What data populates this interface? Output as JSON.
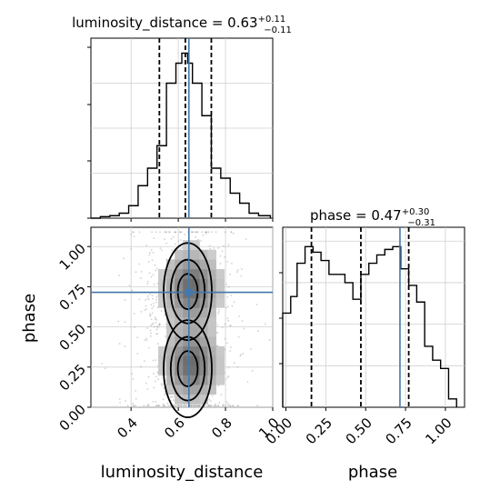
{
  "chart_data": [
    {
      "type": "histogram",
      "panel": "luminosity_distance marginal",
      "title_param": "luminosity_distance",
      "title_value": "0.63",
      "title_plus": "+0.11",
      "title_minus": "−0.11",
      "xlim": [
        0.23,
        1.0
      ],
      "ylim": [
        0,
        0.36
      ],
      "bins": [
        {
          "x0": 0.23,
          "x1": 0.27,
          "v": 0.0
        },
        {
          "x0": 0.27,
          "x1": 0.31,
          "v": 0.003
        },
        {
          "x0": 0.31,
          "x1": 0.35,
          "v": 0.005
        },
        {
          "x0": 0.35,
          "x1": 0.39,
          "v": 0.01
        },
        {
          "x0": 0.39,
          "x1": 0.43,
          "v": 0.025
        },
        {
          "x0": 0.43,
          "x1": 0.47,
          "v": 0.065
        },
        {
          "x0": 0.47,
          "x1": 0.51,
          "v": 0.1
        },
        {
          "x0": 0.51,
          "x1": 0.55,
          "v": 0.145
        },
        {
          "x0": 0.55,
          "x1": 0.59,
          "v": 0.27
        },
        {
          "x0": 0.59,
          "x1": 0.615,
          "v": 0.31
        },
        {
          "x0": 0.615,
          "x1": 0.64,
          "v": 0.33
        },
        {
          "x0": 0.64,
          "x1": 0.66,
          "v": 0.31
        },
        {
          "x0": 0.66,
          "x1": 0.7,
          "v": 0.27
        },
        {
          "x0": 0.7,
          "x1": 0.74,
          "v": 0.205
        },
        {
          "x0": 0.74,
          "x1": 0.78,
          "v": 0.1
        },
        {
          "x0": 0.78,
          "x1": 0.82,
          "v": 0.08
        },
        {
          "x0": 0.82,
          "x1": 0.86,
          "v": 0.05
        },
        {
          "x0": 0.86,
          "x1": 0.9,
          "v": 0.03
        },
        {
          "x0": 0.9,
          "x1": 0.94,
          "v": 0.01
        },
        {
          "x0": 0.94,
          "x1": 0.99,
          "v": 0.005
        }
      ],
      "quantiles": [
        0.52,
        0.63,
        0.74
      ],
      "truth": 0.645,
      "grid": true
    },
    {
      "type": "histogram",
      "panel": "phase marginal",
      "title_param": "phase",
      "title_value": "0.47",
      "title_plus": "+0.30",
      "title_minus": "−0.31",
      "xlim": [
        -0.02,
        1.12
      ],
      "ylim": [
        0,
        0.65
      ],
      "bins": [
        {
          "x0": -0.02,
          "x1": 0.03,
          "v": 0.34
        },
        {
          "x0": 0.03,
          "x1": 0.07,
          "v": 0.4
        },
        {
          "x0": 0.07,
          "x1": 0.12,
          "v": 0.52
        },
        {
          "x0": 0.12,
          "x1": 0.17,
          "v": 0.58
        },
        {
          "x0": 0.17,
          "x1": 0.22,
          "v": 0.56
        },
        {
          "x0": 0.22,
          "x1": 0.27,
          "v": 0.53
        },
        {
          "x0": 0.27,
          "x1": 0.32,
          "v": 0.48
        },
        {
          "x0": 0.32,
          "x1": 0.37,
          "v": 0.48
        },
        {
          "x0": 0.37,
          "x1": 0.42,
          "v": 0.45
        },
        {
          "x0": 0.42,
          "x1": 0.47,
          "v": 0.39
        },
        {
          "x0": 0.47,
          "x1": 0.52,
          "v": 0.48
        },
        {
          "x0": 0.52,
          "x1": 0.57,
          "v": 0.52
        },
        {
          "x0": 0.57,
          "x1": 0.62,
          "v": 0.55
        },
        {
          "x0": 0.62,
          "x1": 0.67,
          "v": 0.57
        },
        {
          "x0": 0.67,
          "x1": 0.72,
          "v": 0.58
        },
        {
          "x0": 0.72,
          "x1": 0.77,
          "v": 0.5
        },
        {
          "x0": 0.77,
          "x1": 0.82,
          "v": 0.44
        },
        {
          "x0": 0.82,
          "x1": 0.87,
          "v": 0.38
        },
        {
          "x0": 0.87,
          "x1": 0.92,
          "v": 0.22
        },
        {
          "x0": 0.92,
          "x1": 0.97,
          "v": 0.17
        },
        {
          "x0": 0.97,
          "x1": 1.02,
          "v": 0.14
        },
        {
          "x0": 1.02,
          "x1": 1.07,
          "v": 0.03
        }
      ],
      "quantiles": [
        0.16,
        0.47,
        0.77
      ],
      "truth": 0.715,
      "xticks": [
        0.0,
        0.25,
        0.5,
        0.75,
        1.0
      ],
      "xtick_labels": [
        "0.00",
        "0.25",
        "0.50",
        "0.75",
        "1.00"
      ],
      "xlabel": "phase",
      "grid": true
    },
    {
      "type": "scatter",
      "panel": "2D joint (corner)",
      "xlim": [
        0.23,
        1.0
      ],
      "ylim": [
        0.0,
        1.12
      ],
      "xticks": [
        0.4,
        0.6,
        0.8,
        1.0
      ],
      "xtick_labels": [
        "0.4",
        "0.6",
        "0.8",
        "1.0"
      ],
      "yticks": [
        0.0,
        0.25,
        0.5,
        0.75,
        1.0
      ],
      "ytick_labels": [
        "0.00",
        "0.25",
        "0.50",
        "0.75",
        "1.00"
      ],
      "xlabel": "luminosity_distance",
      "ylabel": "phase",
      "density_modes": [
        {
          "x": 0.64,
          "y": 0.72,
          "weight": 0.5
        },
        {
          "x": 0.64,
          "y": 0.24,
          "weight": 0.5
        }
      ],
      "truth": {
        "x": 0.645,
        "y": 0.715
      },
      "grid": true,
      "colors": {
        "truth": "#4477aa",
        "lines": "#000000",
        "points": "#555555"
      }
    }
  ]
}
